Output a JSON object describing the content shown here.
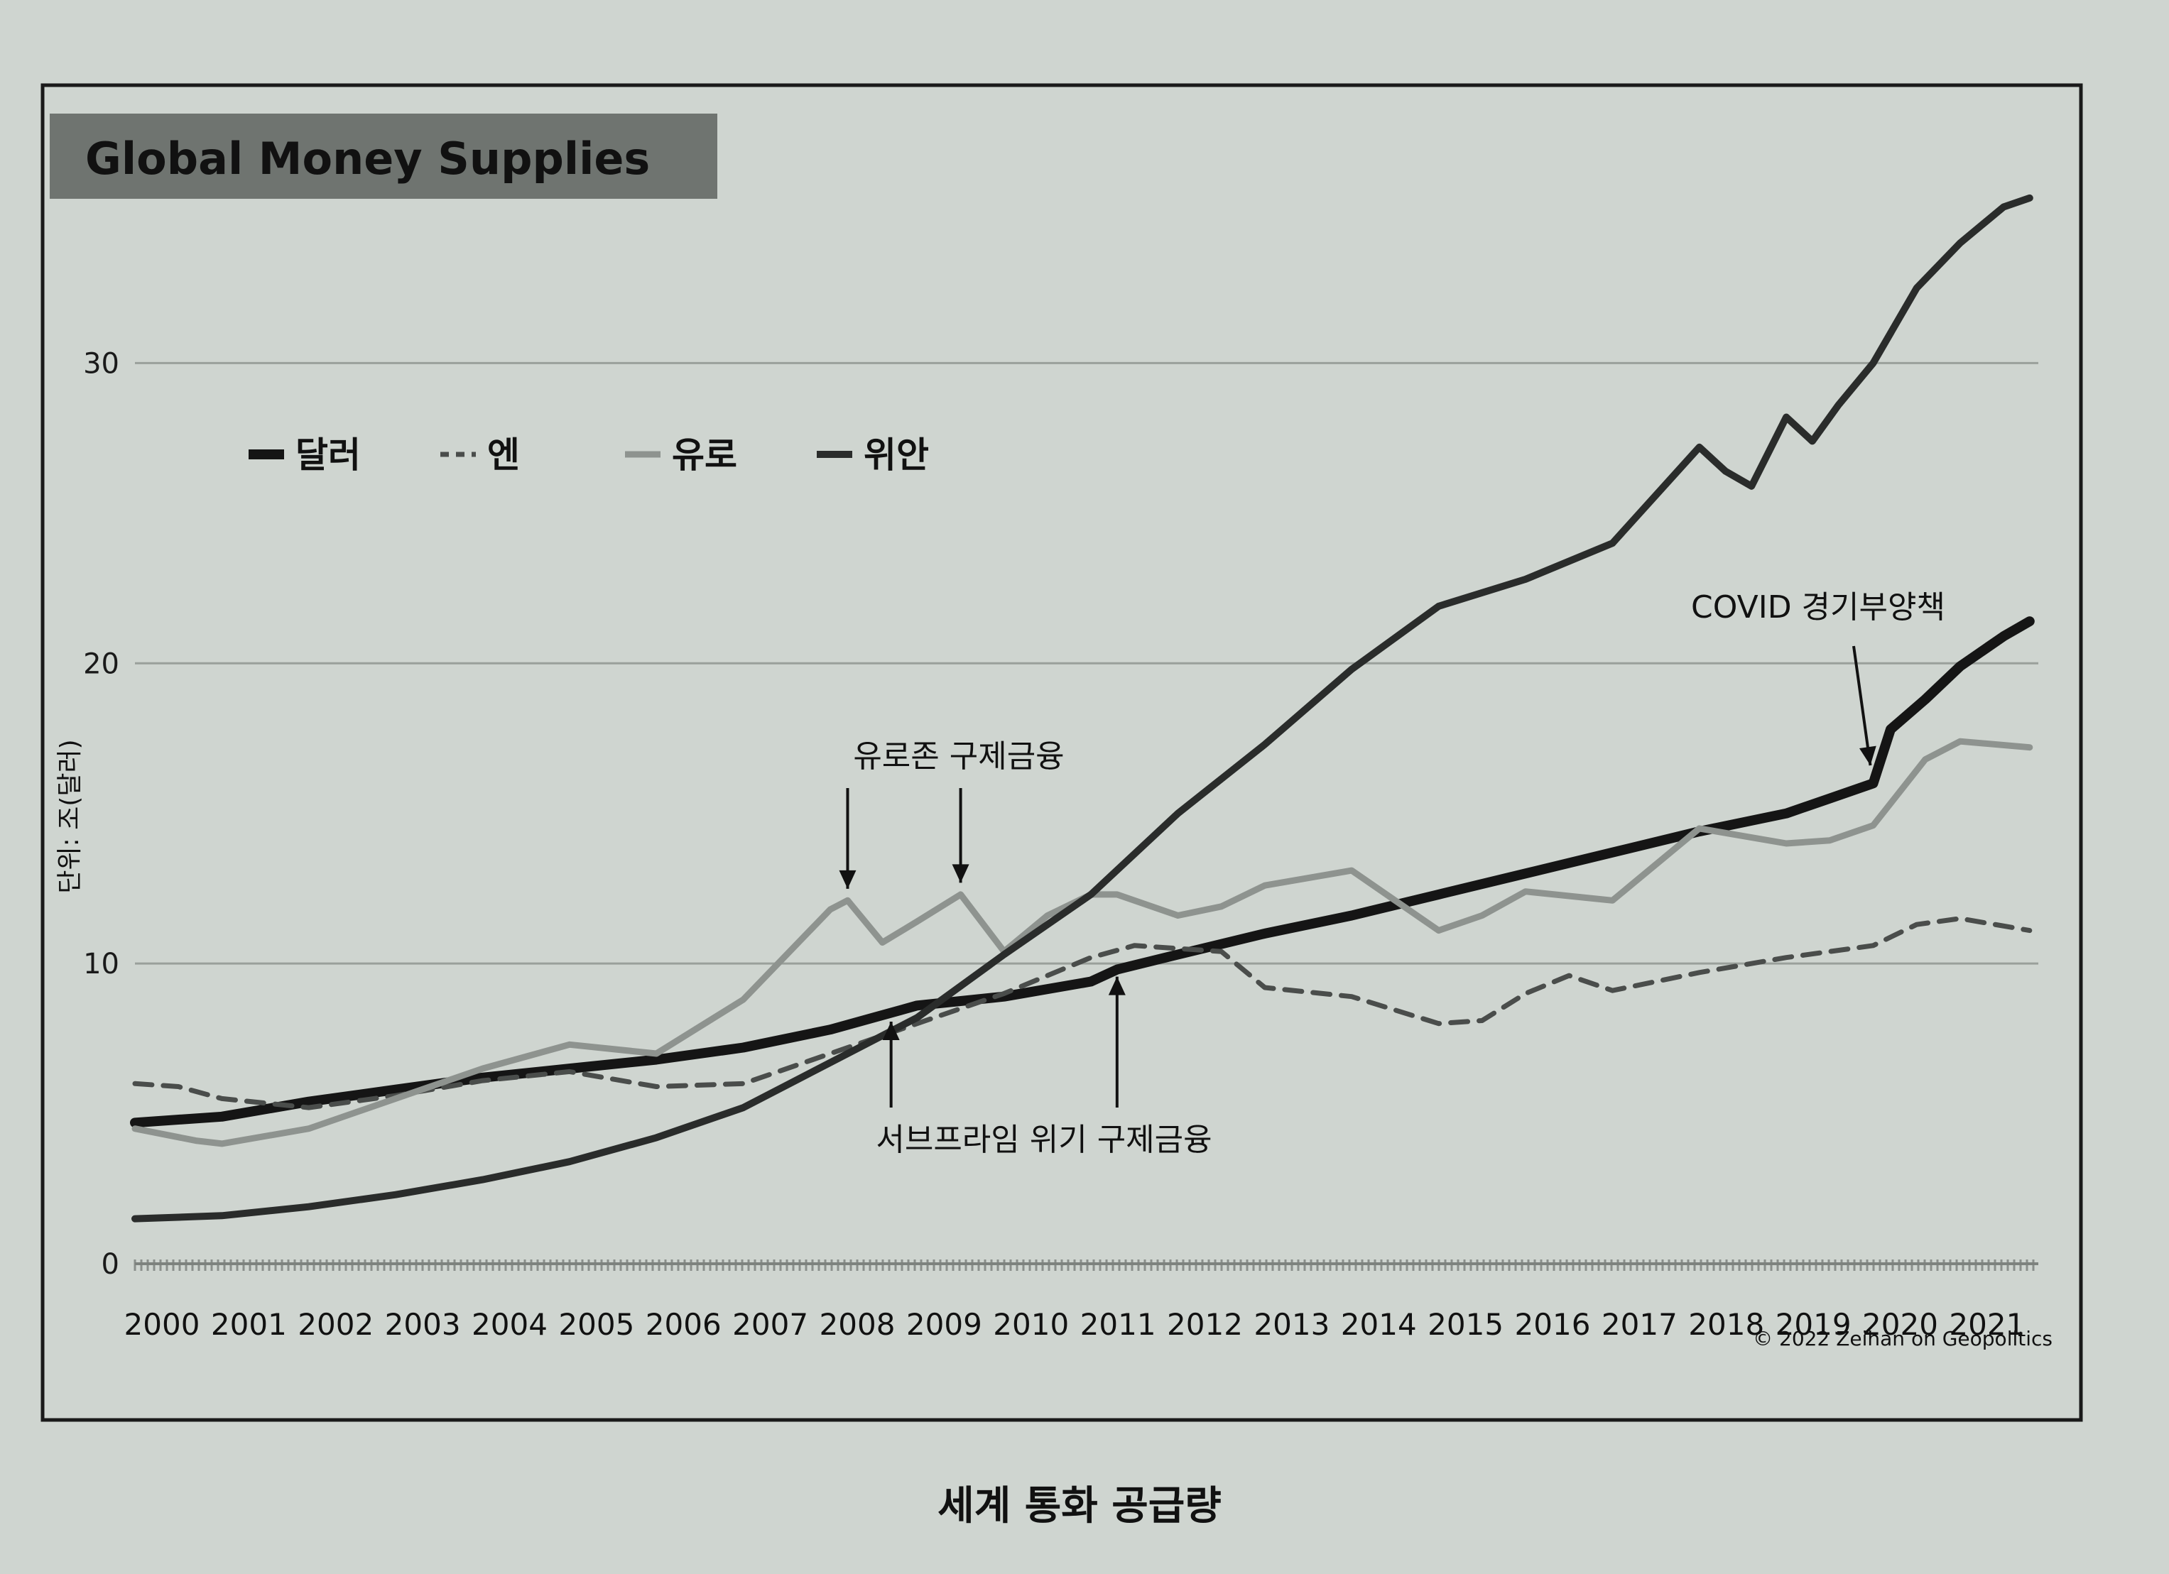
{
  "colors": {
    "page_bg": "#cfd5d0",
    "frame": "#1a1a1a",
    "title_box": "#6f7470",
    "grid": "#9aa09b",
    "dollar": "#151515",
    "yen": "#4a4d4b",
    "euro": "#8e938f",
    "yuan": "#2a2c2b"
  },
  "chart_data": {
    "type": "line",
    "title": "Global Money Supplies",
    "caption": "세계 통화 공급량",
    "ylabel": "단위: 조(달러)",
    "ylim": [
      0,
      35
    ],
    "yticks": [
      "0",
      "10",
      "20",
      "30"
    ],
    "x_tick_labels": [
      "2000",
      "2001",
      "2002",
      "2003",
      "2004",
      "2005",
      "2006",
      "2007",
      "2008",
      "2009",
      "2010",
      "2011",
      "2012",
      "2013",
      "2014",
      "2015",
      "2016",
      "2017",
      "2018",
      "2019",
      "2020",
      "2021"
    ],
    "xlim": [
      2000,
      2021.9
    ],
    "grid": true,
    "legend_position": "top-left",
    "series": [
      {
        "name": "달러",
        "style": "solid-thick",
        "x": [
          2000,
          2001,
          2002,
          2003,
          2004,
          2005,
          2006,
          2007,
          2008,
          2008.5,
          2009,
          2010,
          2011,
          2011.3,
          2012,
          2013,
          2014,
          2015,
          2016,
          2017,
          2018,
          2019,
          2019.5,
          2020,
          2020.2,
          2020.6,
          2021,
          2021.5,
          2021.8
        ],
        "y": [
          4.7,
          4.9,
          5.4,
          5.8,
          6.2,
          6.5,
          6.8,
          7.2,
          7.8,
          8.2,
          8.6,
          8.9,
          9.4,
          9.8,
          10.3,
          11.0,
          11.6,
          12.3,
          13.0,
          13.7,
          14.4,
          15.0,
          15.5,
          16.0,
          17.8,
          18.8,
          19.9,
          20.9,
          21.4
        ]
      },
      {
        "name": "엔",
        "style": "dashed",
        "x": [
          2000,
          2000.5,
          2001,
          2002,
          2003,
          2004,
          2005,
          2006,
          2007,
          2008,
          2009,
          2010,
          2011,
          2011.5,
          2012,
          2012.5,
          2013,
          2014,
          2015,
          2015.5,
          2016,
          2016.5,
          2017,
          2018,
          2019,
          2020,
          2020.5,
          2021,
          2021.8
        ],
        "y": [
          6.0,
          5.9,
          5.5,
          5.2,
          5.6,
          6.1,
          6.4,
          5.9,
          6.0,
          7.0,
          8.0,
          9.0,
          10.2,
          10.6,
          10.5,
          10.4,
          9.2,
          8.9,
          8.0,
          8.1,
          9.0,
          9.6,
          9.1,
          9.7,
          10.2,
          10.6,
          11.3,
          11.5,
          11.1
        ]
      },
      {
        "name": "유로",
        "style": "solid-light",
        "x": [
          2000,
          2000.7,
          2001,
          2002,
          2003,
          2004,
          2005,
          2006,
          2007,
          2008,
          2008.2,
          2008.6,
          2009,
          2009.5,
          2010,
          2010.5,
          2011,
          2011.3,
          2012,
          2012.5,
          2013,
          2014,
          2015,
          2015.5,
          2016,
          2017,
          2018,
          2019,
          2019.5,
          2020,
          2020.6,
          2021,
          2021.8
        ],
        "y": [
          4.5,
          4.1,
          4.0,
          4.5,
          5.5,
          6.5,
          7.3,
          7.0,
          8.8,
          11.8,
          12.1,
          10.7,
          11.4,
          12.3,
          10.4,
          11.6,
          12.3,
          12.3,
          11.6,
          11.9,
          12.6,
          13.1,
          11.1,
          11.6,
          12.4,
          12.1,
          14.5,
          14.0,
          14.1,
          14.6,
          16.8,
          17.4,
          17.2
        ]
      },
      {
        "name": "위안",
        "style": "solid",
        "x": [
          2000,
          2001,
          2002,
          2003,
          2004,
          2005,
          2006,
          2007,
          2008,
          2009,
          2010,
          2011,
          2012,
          2013,
          2014,
          2015,
          2016,
          2017,
          2018,
          2018.3,
          2018.6,
          2019,
          2019.3,
          2019.6,
          2020,
          2020.5,
          2021,
          2021.5,
          2021.8
        ],
        "y": [
          1.5,
          1.6,
          1.9,
          2.3,
          2.8,
          3.4,
          4.2,
          5.2,
          6.7,
          8.2,
          10.3,
          12.3,
          15.0,
          17.3,
          19.8,
          21.9,
          22.8,
          24.0,
          27.2,
          26.4,
          25.9,
          28.2,
          27.4,
          28.6,
          30.0,
          32.5,
          34.0,
          35.2,
          35.5
        ]
      }
    ],
    "annotations": [
      {
        "label": "유로존 구제금융"
      },
      {
        "label": "서브프라임 위기 구제금융"
      },
      {
        "label": "COVID 경기부양책"
      }
    ],
    "credit": "© 2022 Zeihan on Geopolitics"
  }
}
